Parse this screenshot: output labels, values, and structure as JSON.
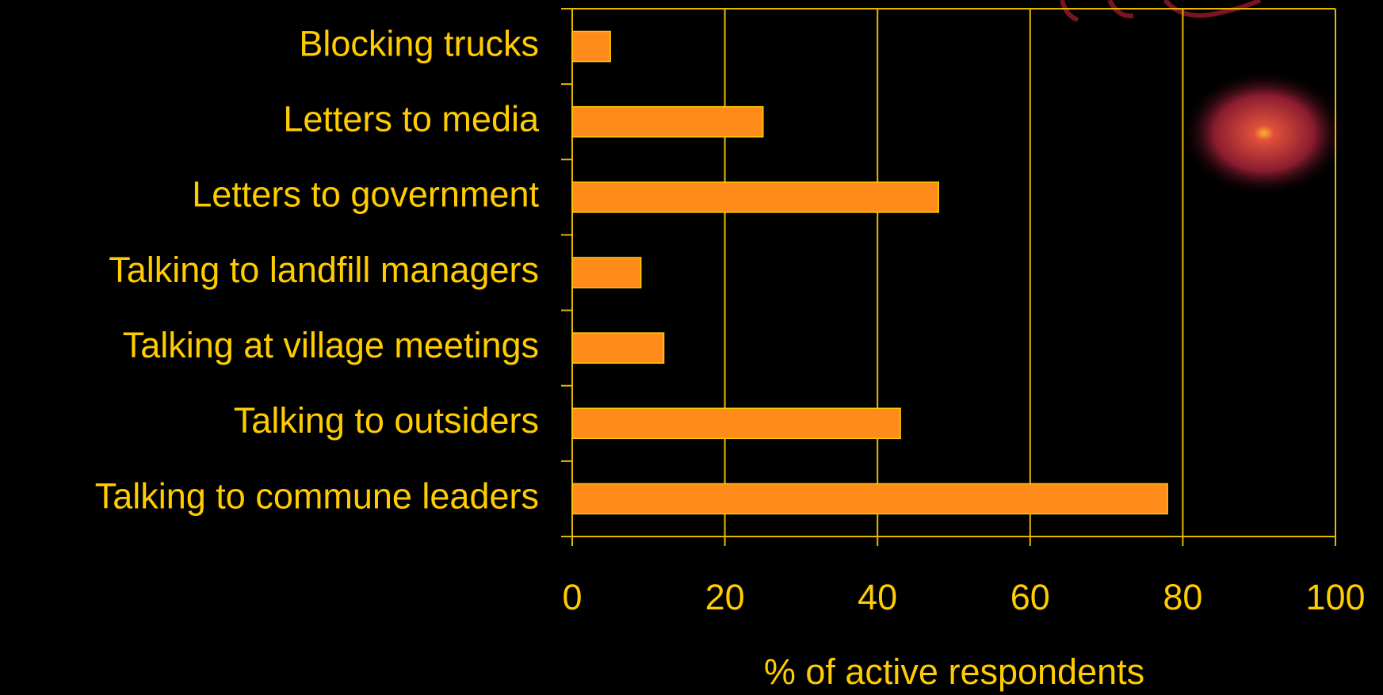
{
  "chart_data": {
    "type": "bar",
    "orientation": "horizontal",
    "xlabel": "% of active respondents",
    "categories": [
      "Blocking trucks",
      "Letters to media",
      "Letters to government",
      "Talking to landfill managers",
      "Talking at village meetings",
      "Talking to outsiders",
      "Talking to commune leaders"
    ],
    "values": [
      5,
      25,
      48,
      9,
      12,
      43,
      78
    ],
    "color": "#ff8c1a",
    "xlim": [
      0,
      100
    ],
    "xticks": [
      0,
      20,
      40,
      60,
      80,
      100
    ],
    "grid": true
  }
}
